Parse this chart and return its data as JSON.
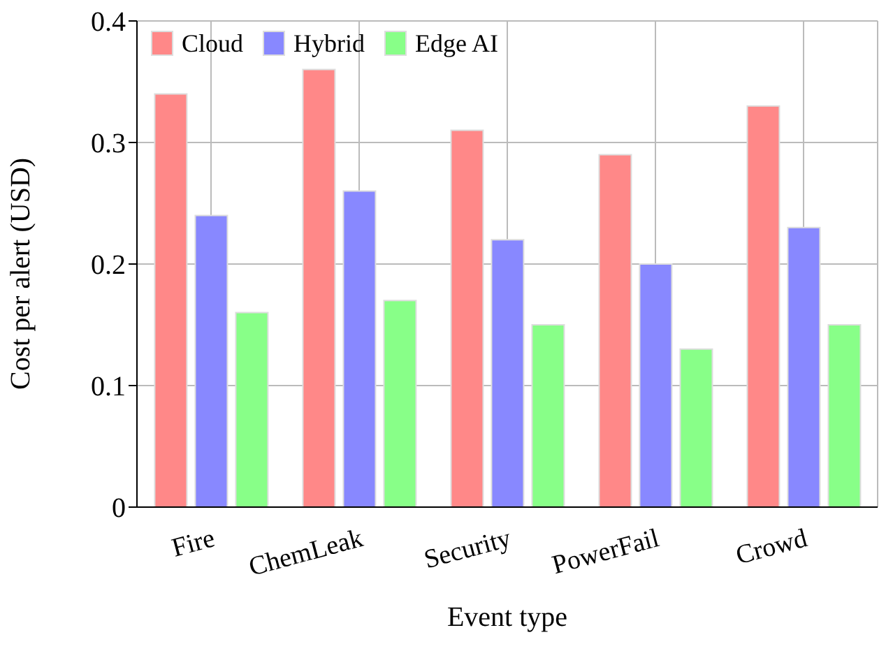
{
  "chart_data": {
    "type": "bar",
    "xlabel": "Event type",
    "ylabel": "Cost per alert (USD)",
    "categories": [
      "Fire",
      "ChemLeak",
      "Security",
      "PowerFail",
      "Crowd"
    ],
    "series": [
      {
        "name": "Cloud",
        "color": "#ff8888",
        "values": [
          0.34,
          0.36,
          0.31,
          0.29,
          0.33
        ]
      },
      {
        "name": "Hybrid",
        "color": "#8888ff",
        "values": [
          0.24,
          0.26,
          0.22,
          0.2,
          0.23
        ]
      },
      {
        "name": "Edge AI",
        "color": "#88ff88",
        "values": [
          0.16,
          0.17,
          0.15,
          0.13,
          0.15
        ]
      }
    ],
    "ylim": [
      0,
      0.4
    ],
    "yticks": [
      0,
      0.1,
      0.2,
      0.3,
      0.4
    ],
    "grid": true,
    "legend": "top left"
  }
}
